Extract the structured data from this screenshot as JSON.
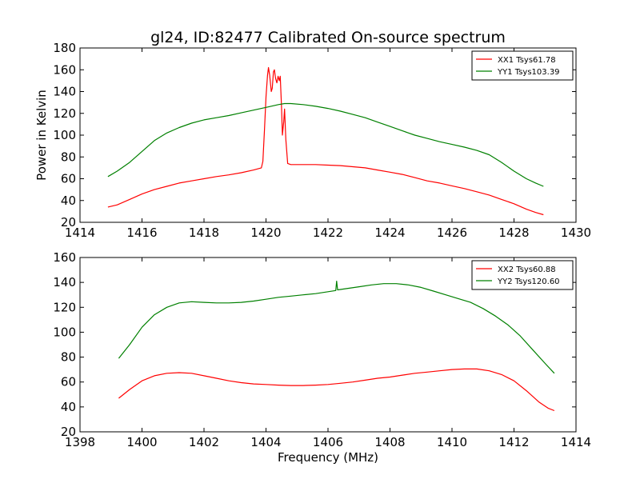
{
  "figure_title": "gl24, ID:82477 Calibrated On-source spectrum",
  "colors": {
    "red": "#ff0000",
    "green": "#008000"
  },
  "chart_data": [
    {
      "type": "line",
      "title": "gl24, ID:82477 Calibrated On-source spectrum",
      "xlabel": "",
      "ylabel": "Power in Kelvin",
      "xlim": [
        1414,
        1430
      ],
      "ylim": [
        20,
        180
      ],
      "xticks": [
        1414,
        1416,
        1418,
        1420,
        1422,
        1424,
        1426,
        1428,
        1430
      ],
      "yticks": [
        20,
        40,
        60,
        80,
        100,
        120,
        140,
        160,
        180
      ],
      "grid": false,
      "legend_position": "top-right",
      "series": [
        {
          "name": "XX1 Tsys61.78",
          "color": "#ff0000",
          "points": [
            [
              1414.9,
              34
            ],
            [
              1415.2,
              36
            ],
            [
              1415.6,
              41
            ],
            [
              1416.0,
              46
            ],
            [
              1416.4,
              50
            ],
            [
              1416.8,
              53
            ],
            [
              1417.2,
              56
            ],
            [
              1417.6,
              58
            ],
            [
              1418.0,
              60
            ],
            [
              1418.4,
              62
            ],
            [
              1418.8,
              63.5
            ],
            [
              1419.2,
              65.5
            ],
            [
              1419.6,
              68
            ],
            [
              1419.85,
              70
            ],
            [
              1419.9,
              76
            ],
            [
              1419.95,
              105
            ],
            [
              1420.0,
              135
            ],
            [
              1420.05,
              155
            ],
            [
              1420.08,
              162
            ],
            [
              1420.12,
              155
            ],
            [
              1420.17,
              140
            ],
            [
              1420.2,
              143
            ],
            [
              1420.24,
              158
            ],
            [
              1420.27,
              160
            ],
            [
              1420.31,
              152
            ],
            [
              1420.35,
              148
            ],
            [
              1420.39,
              154
            ],
            [
              1420.43,
              150
            ],
            [
              1420.46,
              154
            ],
            [
              1420.5,
              126
            ],
            [
              1420.53,
              100
            ],
            [
              1420.57,
              112
            ],
            [
              1420.6,
              124
            ],
            [
              1420.64,
              96
            ],
            [
              1420.7,
              74
            ],
            [
              1420.8,
              73
            ],
            [
              1421.2,
              73
            ],
            [
              1421.6,
              73
            ],
            [
              1422.0,
              72.5
            ],
            [
              1422.4,
              72
            ],
            [
              1422.8,
              71
            ],
            [
              1423.2,
              70
            ],
            [
              1423.6,
              68
            ],
            [
              1424.0,
              66
            ],
            [
              1424.4,
              64
            ],
            [
              1424.8,
              61
            ],
            [
              1425.2,
              58
            ],
            [
              1425.6,
              56
            ],
            [
              1426.0,
              53.5
            ],
            [
              1426.4,
              51
            ],
            [
              1426.8,
              48
            ],
            [
              1427.2,
              45
            ],
            [
              1427.6,
              41
            ],
            [
              1428.0,
              37
            ],
            [
              1428.4,
              32
            ],
            [
              1428.7,
              29
            ],
            [
              1428.95,
              27
            ]
          ]
        },
        {
          "name": "YY1 Tsys103.39",
          "color": "#008000",
          "points": [
            [
              1414.9,
              62
            ],
            [
              1415.2,
              67
            ],
            [
              1415.6,
              75
            ],
            [
              1416.0,
              85
            ],
            [
              1416.4,
              95
            ],
            [
              1416.8,
              102
            ],
            [
              1417.2,
              107
            ],
            [
              1417.6,
              111
            ],
            [
              1418.0,
              114
            ],
            [
              1418.4,
              116
            ],
            [
              1418.8,
              118
            ],
            [
              1419.2,
              120.5
            ],
            [
              1419.6,
              123
            ],
            [
              1420.0,
              125.5
            ],
            [
              1420.4,
              128
            ],
            [
              1420.6,
              129
            ],
            [
              1420.8,
              129
            ],
            [
              1421.2,
              128
            ],
            [
              1421.6,
              126.5
            ],
            [
              1422.0,
              124.5
            ],
            [
              1422.4,
              122
            ],
            [
              1422.8,
              119
            ],
            [
              1423.2,
              116
            ],
            [
              1423.6,
              112
            ],
            [
              1424.0,
              108
            ],
            [
              1424.4,
              104
            ],
            [
              1424.8,
              100
            ],
            [
              1425.2,
              97
            ],
            [
              1425.6,
              94
            ],
            [
              1426.0,
              91.5
            ],
            [
              1426.4,
              89
            ],
            [
              1426.8,
              86
            ],
            [
              1427.2,
              82
            ],
            [
              1427.6,
              75
            ],
            [
              1428.0,
              67
            ],
            [
              1428.4,
              60
            ],
            [
              1428.7,
              56
            ],
            [
              1428.95,
              53
            ]
          ]
        }
      ]
    },
    {
      "type": "line",
      "title": "",
      "xlabel": "Frequency (MHz)",
      "ylabel": "",
      "xlim": [
        1398,
        1414
      ],
      "ylim": [
        20,
        160
      ],
      "xticks": [
        1398,
        1400,
        1402,
        1404,
        1406,
        1408,
        1410,
        1412,
        1414
      ],
      "yticks": [
        20,
        40,
        60,
        80,
        100,
        120,
        140,
        160
      ],
      "grid": false,
      "legend_position": "top-right",
      "series": [
        {
          "name": "XX2 Tsys60.88",
          "color": "#ff0000",
          "points": [
            [
              1399.25,
              47
            ],
            [
              1399.6,
              54
            ],
            [
              1400.0,
              61
            ],
            [
              1400.4,
              65
            ],
            [
              1400.8,
              67
            ],
            [
              1401.2,
              67.5
            ],
            [
              1401.6,
              67
            ],
            [
              1402.0,
              65
            ],
            [
              1402.4,
              63
            ],
            [
              1402.8,
              61
            ],
            [
              1403.2,
              59.5
            ],
            [
              1403.6,
              58.5
            ],
            [
              1404.0,
              58
            ],
            [
              1404.4,
              57.5
            ],
            [
              1404.8,
              57.2
            ],
            [
              1405.2,
              57.2
            ],
            [
              1405.6,
              57.5
            ],
            [
              1406.0,
              58
            ],
            [
              1406.4,
              59
            ],
            [
              1406.8,
              60
            ],
            [
              1407.2,
              61.5
            ],
            [
              1407.6,
              63
            ],
            [
              1408.0,
              64
            ],
            [
              1408.4,
              65.5
            ],
            [
              1408.8,
              67
            ],
            [
              1409.2,
              68
            ],
            [
              1409.6,
              69
            ],
            [
              1410.0,
              70
            ],
            [
              1410.4,
              70.5
            ],
            [
              1410.8,
              70.5
            ],
            [
              1411.2,
              69
            ],
            [
              1411.6,
              66
            ],
            [
              1412.0,
              61
            ],
            [
              1412.4,
              53
            ],
            [
              1412.8,
              44
            ],
            [
              1413.1,
              39
            ],
            [
              1413.3,
              37
            ]
          ]
        },
        {
          "name": "YY2 Tsys120.60",
          "color": "#008000",
          "points": [
            [
              1399.25,
              79
            ],
            [
              1399.6,
              90
            ],
            [
              1400.0,
              104
            ],
            [
              1400.4,
              114
            ],
            [
              1400.8,
              120
            ],
            [
              1401.2,
              123.5
            ],
            [
              1401.6,
              124.5
            ],
            [
              1402.0,
              124
            ],
            [
              1402.4,
              123.5
            ],
            [
              1402.8,
              123.5
            ],
            [
              1403.2,
              124
            ],
            [
              1403.6,
              125
            ],
            [
              1404.0,
              126.5
            ],
            [
              1404.4,
              128
            ],
            [
              1404.8,
              129
            ],
            [
              1405.2,
              130
            ],
            [
              1405.6,
              131
            ],
            [
              1406.0,
              132.5
            ],
            [
              1406.25,
              133.5
            ],
            [
              1406.28,
              141
            ],
            [
              1406.31,
              134
            ],
            [
              1406.6,
              135
            ],
            [
              1407.0,
              136.5
            ],
            [
              1407.4,
              138
            ],
            [
              1407.8,
              139
            ],
            [
              1408.2,
              139
            ],
            [
              1408.6,
              138
            ],
            [
              1409.0,
              136
            ],
            [
              1409.4,
              133
            ],
            [
              1409.8,
              130
            ],
            [
              1410.2,
              127
            ],
            [
              1410.6,
              124
            ],
            [
              1411.0,
              119
            ],
            [
              1411.4,
              113
            ],
            [
              1411.8,
              106
            ],
            [
              1412.2,
              97
            ],
            [
              1412.6,
              86
            ],
            [
              1413.0,
              75
            ],
            [
              1413.3,
              67
            ]
          ]
        }
      ]
    }
  ]
}
